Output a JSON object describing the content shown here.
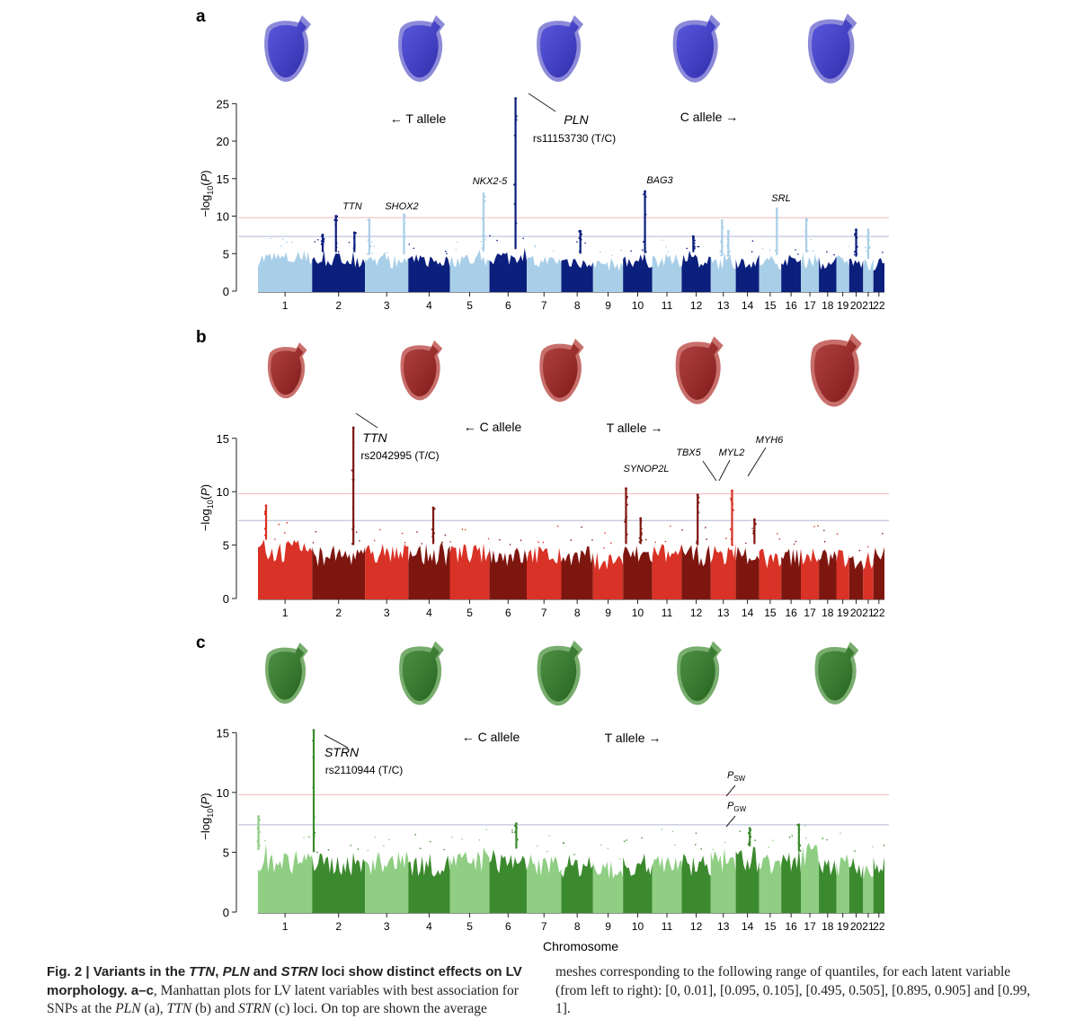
{
  "colors": {
    "a": {
      "light": "#a9cfe8",
      "dark": "#0b1f7d",
      "mesh": "#3a37d4",
      "mesh_shell": "#8c8ad8"
    },
    "b": {
      "light": "#d93226",
      "dark": "#7e1610",
      "mesh": "#9e1e1c",
      "mesh_shell": "#c86f6b"
    },
    "c": {
      "light": "#8fce83",
      "dark": "#3c8a2e",
      "mesh": "#2c7a22",
      "mesh_shell": "#79ad6e"
    },
    "sw_line": "#f3b9bd",
    "gw_line": "#b3b6d3"
  },
  "chart_data": [
    {
      "panel": "a",
      "type": "scatter",
      "subtype": "manhattan",
      "ylabel": "−log10(P)",
      "ylim": [
        0,
        26
      ],
      "yticks": [
        0,
        5,
        10,
        15,
        20,
        25
      ],
      "thresholds": {
        "sw": 9.8,
        "gw": 7.3
      },
      "chromosomes": [
        "1",
        "2",
        "3",
        "4",
        "5",
        "6",
        "7",
        "8",
        "9",
        "10",
        "11",
        "12",
        "13",
        "14",
        "15",
        "16",
        "17",
        "18",
        "19",
        "20",
        "21",
        "22"
      ],
      "chr_lengths": [
        249,
        243,
        199,
        191,
        182,
        171,
        159,
        146,
        138,
        134,
        135,
        134,
        115,
        107,
        102,
        90,
        83,
        80,
        59,
        64,
        47,
        51
      ],
      "background": [
        5.4,
        5.2,
        4.9,
        5.0,
        5.3,
        5.6,
        4.8,
        5.0,
        4.4,
        5.1,
        5.0,
        5.2,
        4.7,
        5.0,
        4.8,
        4.9,
        5.2,
        4.6,
        4.8,
        4.6,
        4.3,
        4.6
      ],
      "peaks": [
        {
          "chr": 2,
          "pos": 0.45,
          "y": 10.0
        },
        {
          "chr": 2,
          "pos": 0.8,
          "y": 7.8
        },
        {
          "chr": 2,
          "pos": 0.2,
          "y": 7.5
        },
        {
          "chr": 3,
          "pos": 0.1,
          "y": 9.5
        },
        {
          "chr": 3,
          "pos": 0.9,
          "y": 10.2
        },
        {
          "chr": 5,
          "pos": 0.85,
          "y": 13.0
        },
        {
          "chr": 6,
          "pos": 0.7,
          "y": 25.7
        },
        {
          "chr": 8,
          "pos": 0.6,
          "y": 8.0
        },
        {
          "chr": 10,
          "pos": 0.75,
          "y": 13.3
        },
        {
          "chr": 12,
          "pos": 0.4,
          "y": 7.3
        },
        {
          "chr": 13,
          "pos": 0.45,
          "y": 9.4
        },
        {
          "chr": 13,
          "pos": 0.7,
          "y": 8.0
        },
        {
          "chr": 15,
          "pos": 0.8,
          "y": 11.0
        },
        {
          "chr": 17,
          "pos": 0.3,
          "y": 9.6
        },
        {
          "chr": 20,
          "pos": 0.5,
          "y": 8.2
        },
        {
          "chr": 21,
          "pos": 0.5,
          "y": 8.2
        }
      ],
      "annotations": [
        {
          "text": "TTN",
          "italic": true
        },
        {
          "text": "SHOX2",
          "italic": true
        },
        {
          "text": "NKX2-5",
          "italic": true
        },
        {
          "text": "BAG3",
          "italic": true
        },
        {
          "text": "SRL",
          "italic": true
        },
        {
          "text": "PLN",
          "italic": true
        },
        {
          "text": "rs11153730 (T/C)",
          "italic": false
        }
      ],
      "allele_left": "← T allele",
      "allele_right": "C allele →",
      "mesh_scales": [
        1.0,
        1.0,
        1.0,
        1.02,
        1.05
      ]
    },
    {
      "panel": "b",
      "type": "scatter",
      "subtype": "manhattan",
      "ylabel": "−log10(P)",
      "ylim": [
        0,
        17
      ],
      "yticks": [
        0,
        5,
        10,
        15
      ],
      "thresholds": {
        "sw": 9.8,
        "gw": 7.3
      },
      "chromosomes": [
        "1",
        "2",
        "3",
        "4",
        "5",
        "6",
        "7",
        "8",
        "9",
        "10",
        "11",
        "12",
        "13",
        "14",
        "15",
        "16",
        "17",
        "18",
        "19",
        "20",
        "21",
        "22"
      ],
      "chr_lengths": [
        249,
        243,
        199,
        191,
        182,
        171,
        159,
        146,
        138,
        134,
        135,
        134,
        115,
        107,
        102,
        90,
        83,
        80,
        59,
        64,
        47,
        51
      ],
      "background": [
        5.5,
        5.0,
        5.2,
        5.1,
        5.2,
        4.9,
        5.0,
        4.9,
        4.4,
        5.1,
        5.2,
        5.0,
        5.0,
        5.1,
        4.7,
        4.8,
        5.2,
        4.8,
        4.6,
        4.4,
        4.4,
        4.9
      ],
      "peaks": [
        {
          "chr": 1,
          "pos": 0.15,
          "y": 8.7
        },
        {
          "chr": 2,
          "pos": 0.78,
          "y": 16.0
        },
        {
          "chr": 4,
          "pos": 0.6,
          "y": 8.5
        },
        {
          "chr": 10,
          "pos": 0.1,
          "y": 10.3
        },
        {
          "chr": 10,
          "pos": 0.6,
          "y": 7.5
        },
        {
          "chr": 12,
          "pos": 0.55,
          "y": 9.7
        },
        {
          "chr": 13,
          "pos": 0.85,
          "y": 10.1
        },
        {
          "chr": 14,
          "pos": 0.8,
          "y": 7.4
        }
      ],
      "annotations": [
        {
          "text": "TTN",
          "italic": true
        },
        {
          "text": "rs2042995 (T/C)",
          "italic": false
        },
        {
          "text": "SYNOP2L",
          "italic": true
        },
        {
          "text": "TBX5",
          "italic": true
        },
        {
          "text": "MYL2",
          "italic": true
        },
        {
          "text": "MYH6",
          "italic": true
        }
      ],
      "allele_left": "← C allele",
      "allele_right": "T allele →",
      "mesh_scales": [
        0.84,
        0.9,
        0.95,
        1.02,
        1.1
      ]
    },
    {
      "panel": "c",
      "type": "scatter",
      "subtype": "manhattan",
      "ylabel": "−log10(P)",
      "ylim": [
        0,
        16
      ],
      "yticks": [
        0,
        5,
        10,
        15
      ],
      "thresholds": {
        "sw": 9.8,
        "gw": 7.3
      },
      "chromosomes": [
        "1",
        "2",
        "3",
        "4",
        "5",
        "6",
        "7",
        "8",
        "9",
        "10",
        "11",
        "12",
        "13",
        "14",
        "15",
        "16",
        "17",
        "18",
        "19",
        "20",
        "21",
        "22"
      ],
      "chr_lengths": [
        249,
        243,
        199,
        191,
        182,
        171,
        159,
        146,
        138,
        134,
        135,
        134,
        115,
        107,
        102,
        90,
        83,
        80,
        59,
        64,
        47,
        51
      ],
      "background": [
        5.2,
        5.0,
        5.1,
        4.9,
        5.2,
        5.3,
        4.9,
        4.8,
        4.3,
        4.9,
        5.2,
        5.0,
        5.2,
        5.5,
        4.9,
        5.1,
        5.8,
        5.0,
        4.9,
        4.6,
        4.3,
        4.7
      ],
      "peaks": [
        {
          "chr": 1,
          "pos": 0.01,
          "y": 8.0
        },
        {
          "chr": 2,
          "pos": 0.03,
          "y": 15.2
        },
        {
          "chr": 6,
          "pos": 0.72,
          "y": 7.4
        },
        {
          "chr": 14,
          "pos": 0.6,
          "y": 7.0
        },
        {
          "chr": 16,
          "pos": 0.9,
          "y": 7.3
        }
      ],
      "annotations": [
        {
          "text": "STRN",
          "italic": true
        },
        {
          "text": "rs2110944 (T/C)",
          "italic": false
        }
      ],
      "legend_sw": "P",
      "legend_sw_sub": "SW",
      "legend_gw": "P",
      "legend_gw_sub": "GW",
      "allele_left": "← C allele",
      "allele_right": "T allele →",
      "mesh_scales": [
        0.92,
        0.96,
        0.98,
        0.96,
        0.94
      ]
    }
  ],
  "panel_letters": [
    "a",
    "b",
    "c"
  ],
  "xlabel": "Chromosome",
  "caption": {
    "fig_label": "Fig. 2 | Variants in the",
    "gene1": "TTN",
    "sep1": ",",
    "gene2": "PLN",
    "sep2": "and",
    "gene3": "STRN",
    "title_rest": "loci show distinct effects on LV morphology.",
    "range": "a–c",
    "text1": ", Manhattan plots for LV latent variables with best association for SNPs at the",
    "g_pln": "PLN",
    "p_a": "(a),",
    "g_ttn": "TTN",
    "p_b": "(b) and",
    "g_strn": "STRN",
    "p_c": "(c) loci. On top are shown the average",
    "right": "meshes corresponding to the following range of quantiles, for each latent variable (from left to right): [0, 0.01], [0.095, 0.105], [0.495, 0.505], [0.895, 0.905] and [0.99, 1]."
  }
}
